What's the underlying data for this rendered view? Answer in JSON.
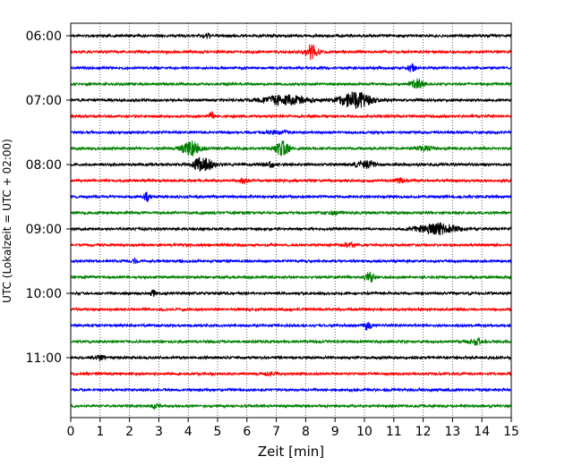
{
  "chart_data": {
    "type": "line",
    "xlabel": "Zeit  [min]",
    "ylabel": "UTC (Lokalzeit = UTC + 02:00)",
    "xlim": [
      0,
      15
    ],
    "x_ticks": [
      "0",
      "1",
      "2",
      "3",
      "4",
      "5",
      "6",
      "7",
      "8",
      "9",
      "10",
      "11",
      "12",
      "13",
      "14",
      "15"
    ],
    "grid": "vertical-dotted",
    "colors": [
      "#000000",
      "#ff0000",
      "#0000ff",
      "#008000"
    ],
    "y_ticks": [
      {
        "label": "06:00",
        "row": 0
      },
      {
        "label": "07:00",
        "row": 4
      },
      {
        "label": "08:00",
        "row": 8
      },
      {
        "label": "09:00",
        "row": 12
      },
      {
        "label": "10:00",
        "row": 16
      },
      {
        "label": "11:00",
        "row": 20
      }
    ],
    "traces": [
      {
        "start": "06:00",
        "color": "#000000",
        "events": [
          {
            "t": 4.6,
            "amp": 0.25,
            "dur": 0.4
          }
        ]
      },
      {
        "start": "06:15",
        "color": "#ff0000",
        "events": [
          {
            "t": 8.2,
            "amp": 0.9,
            "dur": 0.6
          }
        ]
      },
      {
        "start": "06:30",
        "color": "#0000ff",
        "events": [
          {
            "t": 11.6,
            "amp": 0.5,
            "dur": 0.3
          }
        ]
      },
      {
        "start": "06:45",
        "color": "#008000",
        "events": [
          {
            "t": 11.8,
            "amp": 0.6,
            "dur": 0.5
          }
        ]
      },
      {
        "start": "07:00",
        "color": "#000000",
        "events": [
          {
            "t": 7.3,
            "amp": 0.6,
            "dur": 2.0
          },
          {
            "t": 9.7,
            "amp": 1.0,
            "dur": 1.4
          }
        ]
      },
      {
        "start": "07:15",
        "color": "#ff0000",
        "events": [
          {
            "t": 4.8,
            "amp": 0.5,
            "dur": 0.2
          }
        ]
      },
      {
        "start": "07:30",
        "color": "#0000ff",
        "events": [
          {
            "t": 7.0,
            "amp": 0.2,
            "dur": 1.0
          }
        ]
      },
      {
        "start": "07:45",
        "color": "#008000",
        "events": [
          {
            "t": 4.1,
            "amp": 0.9,
            "dur": 0.8
          },
          {
            "t": 7.2,
            "amp": 1.0,
            "dur": 0.6
          },
          {
            "t": 12.0,
            "amp": 0.3,
            "dur": 0.8
          }
        ]
      },
      {
        "start": "08:00",
        "color": "#000000",
        "events": [
          {
            "t": 4.5,
            "amp": 1.0,
            "dur": 0.8
          },
          {
            "t": 6.8,
            "amp": 0.3,
            "dur": 0.6
          },
          {
            "t": 10.0,
            "amp": 0.45,
            "dur": 0.9
          }
        ]
      },
      {
        "start": "08:15",
        "color": "#ff0000",
        "events": [
          {
            "t": 5.9,
            "amp": 0.3,
            "dur": 0.3
          },
          {
            "t": 11.2,
            "amp": 0.3,
            "dur": 0.3
          }
        ]
      },
      {
        "start": "08:30",
        "color": "#0000ff",
        "events": [
          {
            "t": 2.6,
            "amp": 0.5,
            "dur": 0.3
          }
        ]
      },
      {
        "start": "08:45",
        "color": "#008000",
        "events": [
          {
            "t": 9.0,
            "amp": 0.2,
            "dur": 0.6
          }
        ]
      },
      {
        "start": "09:00",
        "color": "#000000",
        "events": [
          {
            "t": 12.5,
            "amp": 0.7,
            "dur": 1.6
          }
        ]
      },
      {
        "start": "09:15",
        "color": "#ff0000",
        "events": [
          {
            "t": 9.5,
            "amp": 0.25,
            "dur": 0.5
          }
        ]
      },
      {
        "start": "09:30",
        "color": "#0000ff",
        "events": [
          {
            "t": 2.2,
            "amp": 0.3,
            "dur": 0.2
          }
        ]
      },
      {
        "start": "09:45",
        "color": "#008000",
        "events": [
          {
            "t": 10.2,
            "amp": 0.6,
            "dur": 0.4
          }
        ]
      },
      {
        "start": "10:00",
        "color": "#000000",
        "events": [
          {
            "t": 2.8,
            "amp": 0.4,
            "dur": 0.2
          }
        ]
      },
      {
        "start": "10:15",
        "color": "#ff0000",
        "events": []
      },
      {
        "start": "10:30",
        "color": "#0000ff",
        "events": [
          {
            "t": 10.1,
            "amp": 0.5,
            "dur": 0.3
          }
        ]
      },
      {
        "start": "10:45",
        "color": "#008000",
        "events": [
          {
            "t": 13.8,
            "amp": 0.4,
            "dur": 0.6
          }
        ]
      },
      {
        "start": "11:00",
        "color": "#000000",
        "events": [
          {
            "t": 1.0,
            "amp": 0.3,
            "dur": 0.4
          }
        ]
      },
      {
        "start": "11:15",
        "color": "#ff0000",
        "events": [
          {
            "t": 6.8,
            "amp": 0.2,
            "dur": 0.6
          }
        ]
      },
      {
        "start": "11:30",
        "color": "#0000ff",
        "events": []
      },
      {
        "start": "11:45",
        "color": "#008000",
        "events": [
          {
            "t": 2.9,
            "amp": 0.3,
            "dur": 0.3
          }
        ]
      }
    ]
  }
}
